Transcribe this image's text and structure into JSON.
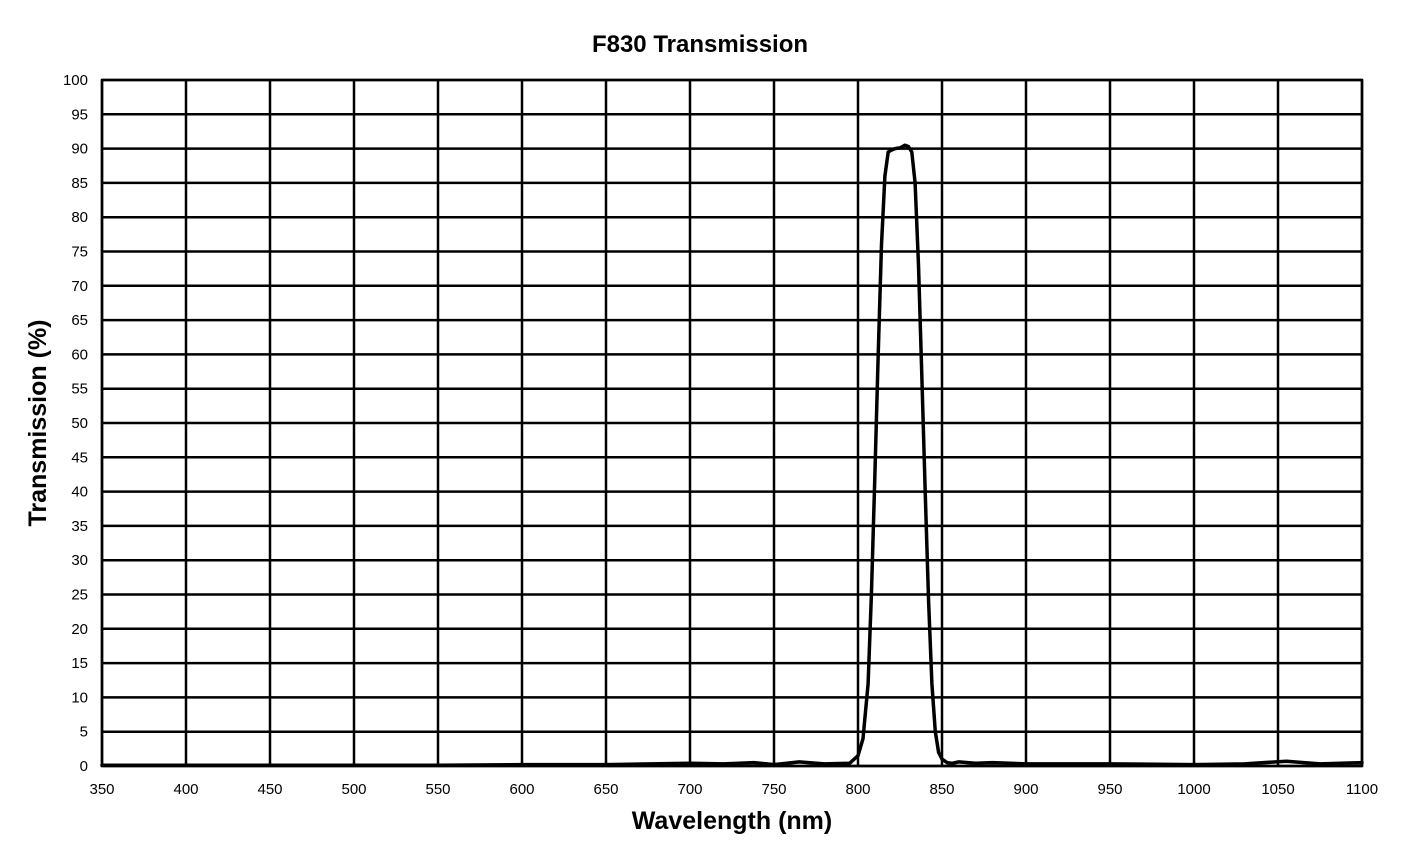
{
  "chart_data": {
    "type": "line",
    "title": "F830 Transmission",
    "xlabel": "Wavelength (nm)",
    "ylabel": "Transmission (%)",
    "xlim": [
      350,
      1100
    ],
    "ylim": [
      0,
      100
    ],
    "x_ticks": [
      350,
      400,
      450,
      500,
      550,
      600,
      650,
      700,
      750,
      800,
      850,
      900,
      950,
      1000,
      1050,
      1100
    ],
    "y_ticks": [
      0,
      5,
      10,
      15,
      20,
      25,
      30,
      35,
      40,
      45,
      50,
      55,
      60,
      65,
      70,
      75,
      80,
      85,
      90,
      95,
      100
    ],
    "grid": true,
    "legend": "none",
    "line_color": "#000000",
    "series": [
      {
        "x": [
          350,
          400,
          450,
          500,
          550,
          600,
          650,
          700,
          720,
          738,
          750,
          765,
          780,
          795,
          800,
          803,
          806,
          808,
          810,
          812,
          814,
          816,
          818,
          820,
          822,
          825,
          828,
          830,
          832,
          834,
          836,
          838,
          840,
          842,
          844,
          846,
          848,
          850,
          853,
          856,
          860,
          870,
          880,
          900,
          950,
          1000,
          1030,
          1055,
          1075,
          1100
        ],
        "y": [
          0.1,
          0.1,
          0.1,
          0.1,
          0.1,
          0.2,
          0.2,
          0.4,
          0.3,
          0.5,
          0.2,
          0.6,
          0.3,
          0.4,
          1.5,
          4,
          12,
          25,
          42,
          60,
          76,
          86,
          89.5,
          89.8,
          90,
          90.1,
          90.5,
          90.3,
          89.5,
          85,
          73,
          57,
          40,
          24,
          12,
          5,
          2,
          1,
          0.5,
          0.4,
          0.6,
          0.4,
          0.5,
          0.3,
          0.3,
          0.2,
          0.3,
          0.7,
          0.3,
          0.5
        ]
      }
    ]
  }
}
